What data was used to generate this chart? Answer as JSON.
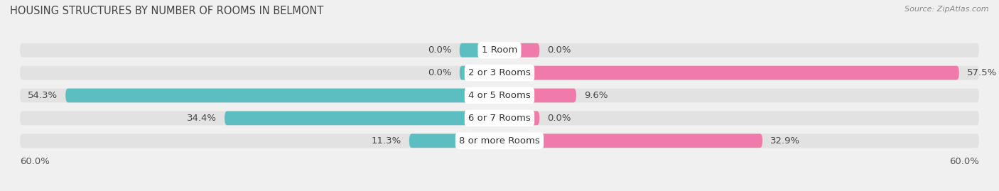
{
  "title": "HOUSING STRUCTURES BY NUMBER OF ROOMS IN BELMONT",
  "source": "Source: ZipAtlas.com",
  "categories": [
    "1 Room",
    "2 or 3 Rooms",
    "4 or 5 Rooms",
    "6 or 7 Rooms",
    "8 or more Rooms"
  ],
  "owner_values": [
    0.0,
    0.0,
    54.3,
    34.4,
    11.3
  ],
  "renter_values": [
    0.0,
    57.5,
    9.6,
    0.0,
    32.9
  ],
  "owner_color": "#5bbfc2",
  "renter_color": "#f07aaa",
  "axis_limit": 60.0,
  "bg_color": "#f0f0f0",
  "bar_bg_color": "#e2e2e2",
  "bar_height": 0.62,
  "label_fontsize": 9.5,
  "title_fontsize": 10.5,
  "legend_fontsize": 9,
  "category_fontsize": 9.5,
  "small_owner_stub": 5.0,
  "small_renter_stub": 5.0
}
